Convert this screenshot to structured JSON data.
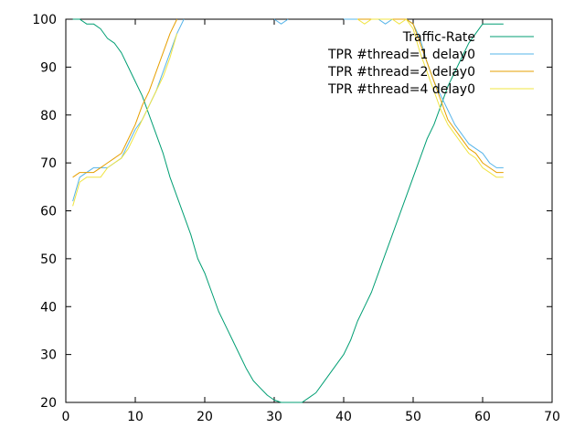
{
  "chart_data": {
    "type": "line",
    "xlim": [
      0,
      70
    ],
    "ylim": [
      20,
      100
    ],
    "xticks": [
      0,
      10,
      20,
      30,
      40,
      50,
      60,
      70
    ],
    "yticks": [
      20,
      30,
      40,
      50,
      60,
      70,
      80,
      90,
      100
    ],
    "grid": false,
    "legend_position": "top-right",
    "series": [
      {
        "name": "Traffic-Rate",
        "color": "#009e73",
        "x": [
          1,
          2,
          3,
          4,
          5,
          6,
          7,
          8,
          9,
          10,
          11,
          12,
          13,
          14,
          15,
          16,
          17,
          18,
          19,
          20,
          21,
          22,
          23,
          24,
          25,
          26,
          27,
          28,
          29,
          30,
          31,
          32,
          33,
          34,
          35,
          36,
          37,
          38,
          39,
          40,
          41,
          42,
          43,
          44,
          45,
          46,
          47,
          48,
          49,
          50,
          51,
          52,
          53,
          54,
          55,
          56,
          57,
          58,
          59,
          60,
          61,
          62,
          63
        ],
        "values": [
          100,
          100,
          99,
          99,
          98,
          96,
          95,
          93,
          90,
          87,
          84,
          80,
          76,
          72,
          67,
          63,
          59,
          55,
          50,
          47,
          43,
          39,
          36,
          33,
          30,
          27,
          24.5,
          23,
          21.5,
          20.5,
          20,
          20,
          20,
          20,
          21,
          22,
          24,
          26,
          28,
          30,
          33,
          37,
          40,
          43,
          47,
          51,
          55,
          59,
          63,
          67,
          71,
          75,
          78,
          82,
          86,
          89,
          92,
          95,
          97,
          99,
          99,
          99,
          99
        ]
      },
      {
        "name": "TPR #thread=1 delay0",
        "color": "#56b4e9",
        "x": [
          1,
          2,
          3,
          4,
          5,
          6,
          7,
          8,
          9,
          10,
          11,
          12,
          13,
          14,
          15,
          16,
          17,
          null,
          30,
          31,
          32,
          null,
          40,
          41,
          42,
          43,
          44,
          45,
          46,
          47,
          48,
          49,
          50,
          51,
          52,
          53,
          54,
          55,
          56,
          57,
          58,
          59,
          60,
          61,
          62,
          63
        ],
        "values": [
          62,
          67,
          68,
          69,
          69,
          69,
          70,
          71,
          74,
          77,
          79,
          82,
          85,
          89,
          93,
          97,
          100,
          null,
          100,
          99,
          100,
          null,
          100,
          100,
          100,
          100,
          100,
          100,
          99,
          100,
          100,
          100,
          99,
          96,
          91,
          87,
          84,
          81,
          78,
          76,
          74,
          73,
          72,
          70,
          69,
          69
        ]
      },
      {
        "name": "TPR #thread=2 delay0",
        "color": "#e69f00",
        "x": [
          1,
          2,
          3,
          4,
          5,
          6,
          7,
          8,
          9,
          10,
          11,
          12,
          13,
          14,
          15,
          16,
          null,
          42,
          43,
          44,
          45,
          46,
          47,
          48,
          49,
          50,
          51,
          52,
          53,
          54,
          55,
          56,
          57,
          58,
          59,
          60,
          61,
          62,
          63
        ],
        "values": [
          67,
          68,
          68,
          68,
          69,
          70,
          71,
          72,
          75,
          78,
          82,
          85,
          89,
          93,
          97,
          100,
          null,
          100,
          100,
          100,
          100,
          100,
          100,
          100,
          100,
          99,
          95,
          91,
          87,
          83,
          79,
          77,
          75,
          73,
          72,
          70,
          69,
          68,
          68
        ]
      },
      {
        "name": "TPR #thread=4 delay0",
        "color": "#f0e442",
        "x": [
          1,
          2,
          3,
          4,
          5,
          6,
          7,
          8,
          9,
          10,
          11,
          12,
          13,
          14,
          15,
          16,
          null,
          42,
          43,
          44,
          45,
          46,
          47,
          48,
          49,
          50,
          51,
          52,
          53,
          54,
          55,
          56,
          57,
          58,
          59,
          60,
          61,
          62,
          63
        ],
        "values": [
          61,
          66,
          67,
          67,
          67,
          69,
          70,
          71,
          73,
          76,
          79,
          82,
          85,
          88,
          92,
          97,
          null,
          100,
          99,
          100,
          100,
          100,
          100,
          99,
          100,
          98,
          93,
          89,
          85,
          81,
          78,
          76,
          74,
          72,
          71,
          69,
          68,
          67,
          67
        ]
      }
    ]
  }
}
